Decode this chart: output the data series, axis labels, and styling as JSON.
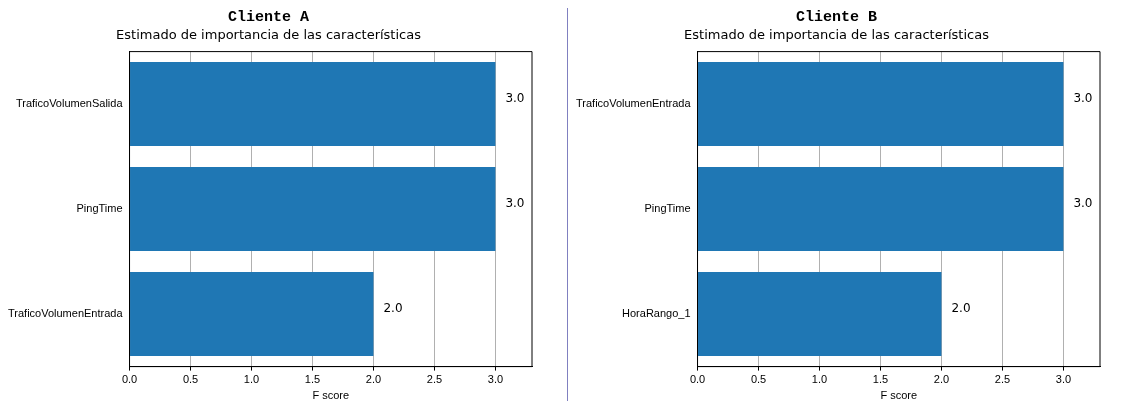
{
  "chart_data": [
    {
      "type": "bar",
      "orientation": "horizontal",
      "title": "Cliente A",
      "subtitle": "Estimado de importancia de las características",
      "xlabel": "F score",
      "categories": [
        "TraficoVolumenSalida",
        "PingTime",
        "TraficoVolumenEntrada"
      ],
      "values": [
        3,
        3,
        2
      ],
      "value_labels": [
        "3.0",
        "3.0",
        "2.0"
      ],
      "color": "#1f77b4",
      "xlim": [
        0,
        3.3
      ],
      "xticks": [
        {
          "value": 0,
          "label": "0.0"
        },
        0.5,
        {
          "value": 1,
          "label": "1.0"
        },
        1.5,
        {
          "value": 2,
          "label": "2.0"
        },
        2.5,
        {
          "value": 3,
          "label": "3.0"
        }
      ],
      "grid": "x",
      "legend": false
    },
    {
      "type": "bar",
      "orientation": "horizontal",
      "title": "Cliente B",
      "subtitle": "Estimado de importancia de las características",
      "xlabel": "F score",
      "categories": [
        "TraficoVolumenEntrada",
        "PingTime",
        "HoraRango_1"
      ],
      "values": [
        3,
        3,
        2
      ],
      "value_labels": [
        "3.0",
        "3.0",
        "2.0"
      ],
      "color": "#1f77b4",
      "xlim": [
        0,
        3.3
      ],
      "xticks": [
        {
          "value": 0,
          "label": "0.0"
        },
        0.5,
        {
          "value": 1,
          "label": "1.0"
        },
        1.5,
        {
          "value": 2,
          "label": "2.0"
        },
        2.5,
        {
          "value": 3,
          "label": "3.0"
        }
      ],
      "grid": "x",
      "legend": false
    }
  ]
}
